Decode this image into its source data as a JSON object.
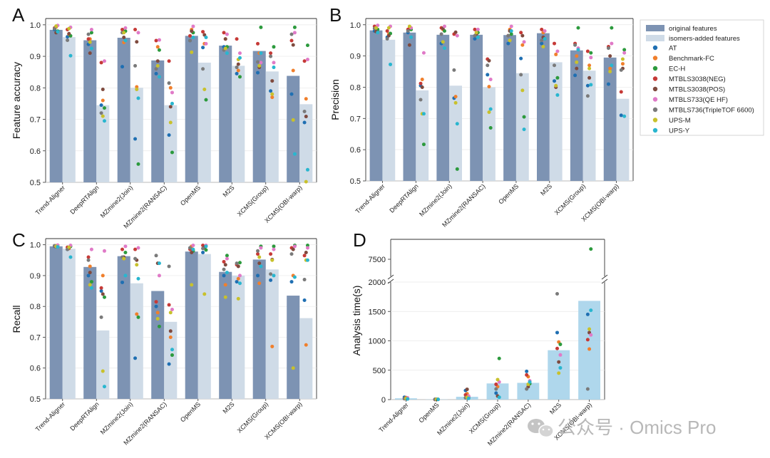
{
  "figure": {
    "legend": {
      "bars": [
        {
          "label": "original features",
          "color": "#7d93b3"
        },
        {
          "label": "isomers-added features",
          "color": "#cfdbe7"
        }
      ],
      "datasets": [
        {
          "label": "AT",
          "color": "#1f6fb2"
        },
        {
          "label": "Benchmark-FC",
          "color": "#f07f2c"
        },
        {
          "label": "EC-H",
          "color": "#2c9a3d"
        },
        {
          "label": "MTBLS3038(NEG)",
          "color": "#c63a37"
        },
        {
          "label": "MTBLS3038(POS)",
          "color": "#7f4a3e"
        },
        {
          "label": "MTBLS733(QE HF)",
          "color": "#e07ac7"
        },
        {
          "label": "MTBLS736(TripleTOF 6600)",
          "color": "#7a7a7a"
        },
        {
          "label": "UPS-M",
          "color": "#c8c12c"
        },
        {
          "label": "UPS-Y",
          "color": "#29b6cf"
        }
      ]
    },
    "watermark": {
      "icon": "wechat-icon",
      "text": "公众号 · Omics Pro"
    }
  },
  "chart_data": [
    {
      "panel": "A",
      "type": "bar",
      "ylabel": "Feature accuracy",
      "ylim": [
        0.5,
        1.02
      ],
      "yticks": [
        "0.5",
        "0.6",
        "0.7",
        "0.8",
        "0.9",
        "1.0"
      ],
      "categories": [
        "Trend-Aligner",
        "DeepRTAlign",
        "MZmine2(Join)",
        "MZmine2(RANSAC)",
        "OpenMS",
        "M2S",
        "XCMS(Group)",
        "XCMS(OBI-warp)"
      ],
      "series": [
        {
          "name": "original features",
          "values": [
            0.984,
            0.951,
            0.959,
            0.887,
            0.965,
            0.934,
            0.917,
            0.838
          ]
        },
        {
          "name": "isomers-added features",
          "values": [
            0.961,
            0.745,
            0.8,
            0.745,
            0.88,
            0.87,
            0.852,
            0.748
          ]
        }
      ],
      "points": [
        [
          [
            0.985,
            0.993,
            0.98,
            0.99,
            0.975,
            0.998,
            0.988,
            0.996,
            0.978
          ],
          [
            0.962,
            0.97,
            0.965,
            0.985,
            0.972,
            0.992,
            0.951,
            0.988,
            0.902
          ]
        ],
        [
          [
            0.938,
            0.955,
            0.975,
            0.955,
            0.91,
            0.985,
            0.97,
            0.945,
            0.925
          ],
          [
            0.745,
            0.76,
            0.736,
            0.88,
            0.795,
            0.885,
            0.72,
            0.71,
            0.695
          ]
        ],
        [
          [
            0.867,
            0.944,
            0.98,
            0.985,
            0.96,
            0.99,
            0.975,
            0.975,
            0.95
          ],
          [
            0.638,
            0.803,
            0.558,
            0.985,
            0.946,
            0.975,
            0.87,
            0.795,
            0.767
          ]
        ],
        [
          [
            0.845,
            0.93,
            0.92,
            0.95,
            0.885,
            0.952,
            0.86,
            0.87,
            0.835
          ],
          [
            0.65,
            0.8,
            0.595,
            0.885,
            0.74,
            0.785,
            0.815,
            0.69,
            0.75
          ]
        ],
        [
          [
            0.95,
            0.985,
            0.975,
            0.965,
            0.98,
            0.995,
            0.95,
            0.913,
            0.96
          ],
          [
            0.928,
            0.94,
            0.762,
            0.978,
            0.968,
            0.94,
            0.86,
            0.795,
            0.96
          ]
        ],
        [
          [
            0.93,
            0.955,
            0.93,
            0.975,
            0.955,
            0.97,
            0.92,
            0.925,
            0.91
          ],
          [
            0.845,
            0.855,
            0.835,
            0.955,
            0.875,
            0.91,
            0.865,
            0.89,
            0.895
          ]
        ],
        [
          [
            0.848,
            0.91,
            0.992,
            0.94,
            0.865,
            0.88,
            0.882,
            0.87,
            0.91
          ],
          [
            0.79,
            0.77,
            0.93,
            0.91,
            0.822,
            0.88,
            0.9,
            0.78,
            0.865
          ]
        ],
        [
          [
            0.78,
            0.855,
            0.992,
            0.95,
            0.936,
            0.975,
            0.97,
            0.698,
            0.59
          ],
          [
            0.69,
            0.765,
            0.935,
            0.885,
            0.709,
            0.89,
            0.725,
            0.502,
            0.54
          ]
        ]
      ]
    },
    {
      "panel": "B",
      "type": "bar",
      "ylabel": "Precision",
      "ylim": [
        0.5,
        1.02
      ],
      "yticks": [
        "0.5",
        "0.6",
        "0.7",
        "0.8",
        "0.9",
        "1.0"
      ],
      "categories": [
        "Trend-Aligner",
        "DeepRTAlign",
        "MZmine2(Join)",
        "MZmine2(RANSAC)",
        "OpenMS",
        "M2S",
        "XCMS(Group)",
        "XCMS(OBI-warp)"
      ],
      "series": [
        {
          "name": "original features",
          "values": [
            0.982,
            0.975,
            0.968,
            0.968,
            0.967,
            0.973,
            0.918,
            0.895
          ]
        },
        {
          "name": "isomers-added features",
          "values": [
            0.952,
            0.79,
            0.805,
            0.8,
            0.845,
            0.88,
            0.853,
            0.763
          ]
        }
      ],
      "points": [
        [
          [
            0.98,
            0.99,
            0.985,
            0.995,
            0.978,
            0.998,
            0.988,
            0.99,
            0.975
          ],
          [
            0.96,
            0.97,
            0.972,
            0.98,
            0.965,
            0.995,
            0.955,
            0.99,
            0.873
          ]
        ],
        [
          [
            0.975,
            0.99,
            0.985,
            0.985,
            0.935,
            0.99,
            0.98,
            0.995,
            0.96
          ],
          [
            0.805,
            0.825,
            0.617,
            0.812,
            0.8,
            0.91,
            0.76,
            0.715,
            0.715
          ]
        ],
        [
          [
            0.94,
            0.985,
            0.98,
            0.99,
            0.988,
            0.995,
            0.97,
            0.945,
            0.925
          ],
          [
            0.765,
            0.77,
            0.538,
            0.97,
            0.976,
            0.965,
            0.855,
            0.75,
            0.683
          ]
        ],
        [
          [
            0.955,
            0.97,
            0.975,
            0.985,
            0.97,
            0.985,
            0.965,
            0.975,
            0.96
          ],
          [
            0.84,
            0.802,
            0.67,
            0.89,
            0.885,
            0.825,
            0.87,
            0.72,
            0.73
          ]
        ],
        [
          [
            0.94,
            0.985,
            0.97,
            0.965,
            0.98,
            0.995,
            0.965,
            0.95,
            0.98
          ],
          [
            0.892,
            0.935,
            0.705,
            0.975,
            0.965,
            0.945,
            0.84,
            0.79,
            0.665
          ]
        ],
        [
          [
            0.94,
            0.975,
            0.955,
            0.985,
            0.96,
            0.98,
            0.95,
            0.93,
            0.955
          ],
          [
            0.82,
            0.905,
            0.83,
            0.94,
            0.8,
            0.915,
            0.87,
            0.805,
            0.775
          ]
        ],
        [
          [
            0.838,
            0.9,
            0.99,
            0.94,
            0.86,
            0.925,
            0.935,
            0.88,
            0.92
          ],
          [
            0.805,
            0.87,
            0.91,
            0.915,
            0.83,
            0.895,
            0.772,
            0.86,
            0.808
          ]
        ],
        [
          [
            0.81,
            0.86,
            0.99,
            0.93,
            0.9,
            0.94,
            0.925,
            0.85,
            0.87
          ],
          [
            0.71,
            0.875,
            0.92,
            0.785,
            0.86,
            0.91,
            0.855,
            0.89,
            0.707
          ]
        ]
      ]
    },
    {
      "panel": "C",
      "type": "bar",
      "ylabel": "Recall",
      "ylim": [
        0.5,
        1.02
      ],
      "yticks": [
        "0.5",
        "0.6",
        "0.7",
        "0.8",
        "0.9",
        "1.0"
      ],
      "categories": [
        "Trend-Aligner",
        "DeepRTAlign",
        "MZmine2(Join)",
        "MZmine2(RANSAC)",
        "OpenMS",
        "M2S",
        "XCMS(Group)",
        "XCMS(OBI-warp)"
      ],
      "series": [
        {
          "name": "original features",
          "values": [
            0.995,
            0.928,
            0.963,
            0.85,
            0.978,
            0.912,
            0.952,
            0.835
          ]
        },
        {
          "name": "isomers-added features",
          "values": [
            0.987,
            0.722,
            0.875,
            0.75,
            0.97,
            0.9,
            0.92,
            0.762
          ]
        }
      ],
      "points": [
        [
          [
            0.995,
            0.997,
            0.998,
            0.996,
            0.994,
            0.999,
            0.997,
            0.995,
            0.993
          ],
          [
            0.985,
            0.988,
            0.995,
            0.992,
            0.99,
            0.998,
            0.985,
            0.992,
            0.96
          ]
        ],
        [
          [
            0.9,
            0.93,
            0.88,
            0.96,
            0.91,
            0.985,
            0.95,
            0.87,
            0.86
          ],
          [
            0.85,
            0.9,
            0.83,
            0.86,
            0.84,
            0.98,
            0.765,
            0.59,
            0.54
          ]
        ],
        [
          [
            0.878,
            0.955,
            0.975,
            0.985,
            0.96,
            0.995,
            0.96,
            0.955,
            0.9
          ],
          [
            0.632,
            0.775,
            0.765,
            0.985,
            0.95,
            0.99,
            0.955,
            0.935,
            0.89
          ]
        ],
        [
          [
            0.8,
            0.78,
            0.735,
            0.815,
            0.94,
            0.9,
            0.965,
            0.76,
            0.94
          ],
          [
            0.613,
            0.7,
            0.642,
            0.805,
            0.72,
            0.79,
            0.93,
            0.78,
            0.66
          ]
        ],
        [
          [
            0.99,
            0.995,
            0.98,
            0.985,
            0.975,
            0.998,
            0.99,
            0.87,
            0.985
          ],
          [
            0.975,
            0.99,
            0.983,
            0.998,
            0.993,
            0.998,
            0.988,
            0.84,
            0.995
          ]
        ],
        [
          [
            0.9,
            0.87,
            0.965,
            0.945,
            0.935,
            0.955,
            0.92,
            0.83,
            0.91
          ],
          [
            0.88,
            0.89,
            0.942,
            0.935,
            0.93,
            0.9,
            0.94,
            0.825,
            0.875
          ]
        ],
        [
          [
            0.9,
            0.875,
            0.995,
            0.97,
            0.94,
            0.99,
            0.98,
            0.96,
            0.93
          ],
          [
            0.885,
            0.67,
            0.995,
            0.97,
            0.952,
            0.985,
            0.905,
            0.95,
            0.9
          ]
        ],
        [
          [
            0.88,
            0.9,
            0.998,
            0.99,
            0.985,
            0.995,
            0.97,
            0.6,
            0.895
          ],
          [
            0.82,
            0.675,
            0.998,
            0.965,
            0.975,
            0.99,
            0.887,
            0.95,
            0.95
          ]
        ]
      ]
    },
    {
      "panel": "D",
      "type": "bar",
      "ylabel": "Analysis time(s)",
      "ylim": [
        0,
        2000
      ],
      "upper_tick": "7500",
      "axis_break": true,
      "yticks": [
        "0",
        "500",
        "1000",
        "1500",
        "2000"
      ],
      "categories": [
        "Trend-Aligner",
        "OpenMS",
        "MZmine2(Join)",
        "XCMS(Group)",
        "MZmine2(RANSAC)",
        "M2S",
        "XCMS(OBI-warp)"
      ],
      "series": [
        {
          "name": "original features",
          "values": [
            22,
            4,
            48,
            275,
            285,
            840,
            1680
          ]
        }
      ],
      "points": [
        [
          [
            40,
            35,
            20,
            15,
            25,
            30,
            15,
            20,
            10
          ]
        ],
        [
          [
            5,
            3,
            4,
            2,
            6,
            3,
            4,
            5,
            3
          ]
        ],
        [
          [
            155,
            100,
            45,
            80,
            175,
            60,
            30,
            40,
            20
          ]
        ],
        [
          [
            110,
            220,
            700,
            260,
            60,
            300,
            180,
            340,
            40
          ]
        ],
        [
          [
            480,
            390,
            270,
            420,
            220,
            320,
            180,
            260,
            300
          ]
        ],
        [
          [
            1140,
            980,
            940,
            870,
            640,
            760,
            1800,
            450,
            540
          ]
        ],
        [
          [
            1450,
            860,
            7800,
            1020,
            1140,
            1100,
            180,
            1200,
            1520
          ]
        ]
      ]
    }
  ]
}
